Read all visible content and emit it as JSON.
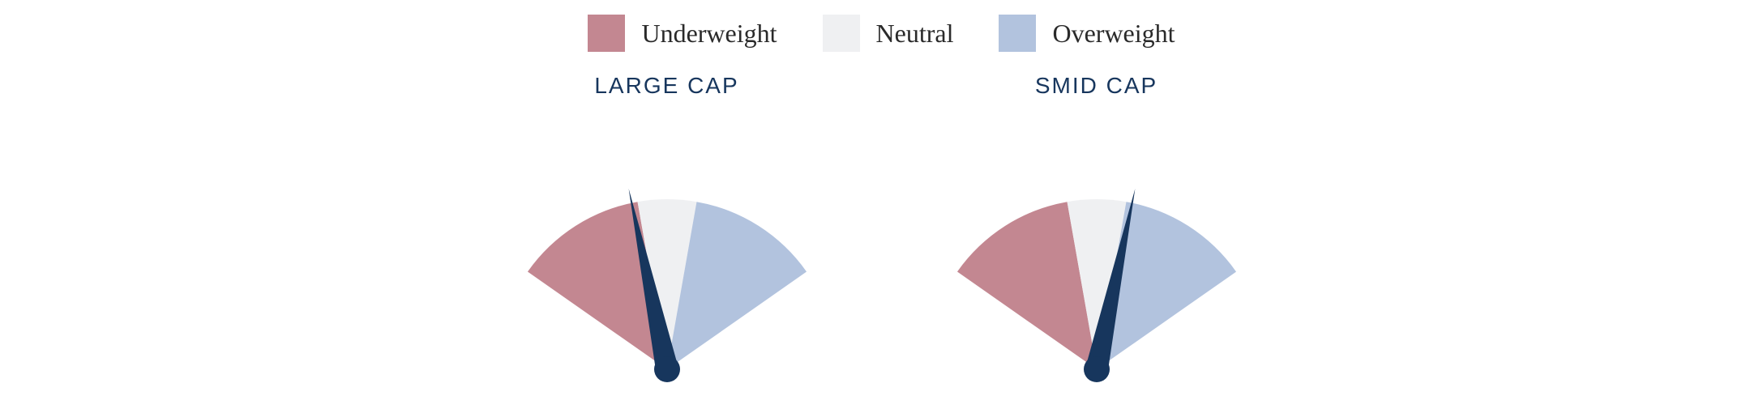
{
  "legend": {
    "items": [
      {
        "label": "Underweight",
        "color": "#c38791"
      },
      {
        "label": "Neutral",
        "color": "#eff0f2"
      },
      {
        "label": "Overweight",
        "color": "#b2c3de"
      }
    ],
    "label_fontsize": 32,
    "label_color": "#2a2a2a",
    "swatch_size": 46
  },
  "gauges": [
    {
      "title": "LARGE CAP",
      "needle_angle_deg": -12,
      "needle_color": "#17365d",
      "segments": [
        {
          "color": "#c38791",
          "start_deg": -55,
          "end_deg": -10
        },
        {
          "color": "#eff0f2",
          "start_deg": -10,
          "end_deg": 10
        },
        {
          "color": "#b2c3de",
          "start_deg": 10,
          "end_deg": 55
        }
      ],
      "radius": 210,
      "title_fontsize": 28,
      "title_color": "#17365d"
    },
    {
      "title": "SMID CAP",
      "needle_angle_deg": 12,
      "needle_color": "#17365d",
      "segments": [
        {
          "color": "#c38791",
          "start_deg": -55,
          "end_deg": -10
        },
        {
          "color": "#eff0f2",
          "start_deg": -10,
          "end_deg": 10
        },
        {
          "color": "#b2c3de",
          "start_deg": 10,
          "end_deg": 55
        }
      ],
      "radius": 210,
      "title_fontsize": 28,
      "title_color": "#17365d"
    }
  ],
  "background_color": "#ffffff"
}
